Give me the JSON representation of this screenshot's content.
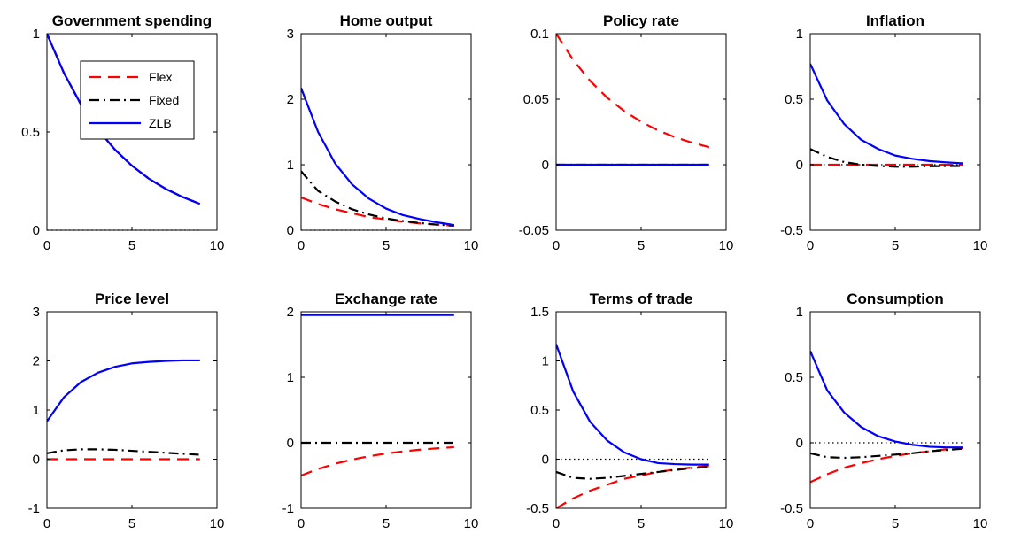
{
  "figure": {
    "legend": {
      "entries": [
        "Flex",
        "Fixed",
        "ZLB"
      ],
      "placement": "upper-center of first panel"
    },
    "series_colors": {
      "Flex": "#ff0000",
      "Fixed": "#000000",
      "ZLB": "#0000ff",
      "zero_line": "#000000"
    }
  },
  "chart_data": [
    {
      "type": "line",
      "title": "Government spending",
      "xlim": [
        0,
        10
      ],
      "ylim": [
        0,
        1
      ],
      "xticks": [
        "0",
        "5",
        "10"
      ],
      "yticks": [
        "0",
        "0.5",
        "1"
      ],
      "ytick_values": [
        0,
        0.5,
        1
      ],
      "zero_line": true,
      "x": [
        0,
        1,
        2,
        3,
        4,
        5,
        6,
        7,
        8,
        9
      ],
      "series": [
        {
          "name": "Flex",
          "values": [
            1.0,
            0.8,
            0.64,
            0.512,
            0.41,
            0.328,
            0.262,
            0.21,
            0.168,
            0.134
          ]
        },
        {
          "name": "Fixed",
          "values": [
            1.0,
            0.8,
            0.64,
            0.512,
            0.41,
            0.328,
            0.262,
            0.21,
            0.168,
            0.134
          ]
        },
        {
          "name": "ZLB",
          "values": [
            1.0,
            0.8,
            0.64,
            0.512,
            0.41,
            0.328,
            0.262,
            0.21,
            0.168,
            0.134
          ]
        }
      ]
    },
    {
      "type": "line",
      "title": "Home output",
      "xlim": [
        0,
        10
      ],
      "ylim": [
        0,
        3
      ],
      "xticks": [
        "0",
        "5",
        "10"
      ],
      "yticks": [
        "0",
        "1",
        "2",
        "3"
      ],
      "ytick_values": [
        0,
        1,
        2,
        3
      ],
      "zero_line": true,
      "x": [
        0,
        1,
        2,
        3,
        4,
        5,
        6,
        7,
        8,
        9
      ],
      "series": [
        {
          "name": "Flex",
          "values": [
            0.5,
            0.4,
            0.32,
            0.26,
            0.2,
            0.165,
            0.13,
            0.105,
            0.085,
            0.07
          ]
        },
        {
          "name": "Fixed",
          "values": [
            0.9,
            0.6,
            0.44,
            0.32,
            0.24,
            0.18,
            0.14,
            0.11,
            0.085,
            0.07
          ]
        },
        {
          "name": "ZLB",
          "values": [
            2.17,
            1.5,
            1.02,
            0.7,
            0.48,
            0.33,
            0.23,
            0.17,
            0.12,
            0.08
          ]
        }
      ]
    },
    {
      "type": "line",
      "title": "Policy rate",
      "xlim": [
        0,
        10
      ],
      "ylim": [
        -0.05,
        0.1
      ],
      "xticks": [
        "0",
        "5",
        "10"
      ],
      "yticks": [
        "-0.05",
        "0",
        "0.05",
        "0.1"
      ],
      "ytick_values": [
        -0.05,
        0,
        0.05,
        0.1
      ],
      "zero_line": true,
      "x": [
        0,
        1,
        2,
        3,
        4,
        5,
        6,
        7,
        8,
        9
      ],
      "series": [
        {
          "name": "Flex",
          "values": [
            0.1,
            0.08,
            0.064,
            0.0512,
            0.041,
            0.0328,
            0.0262,
            0.021,
            0.0168,
            0.0134
          ]
        },
        {
          "name": "Fixed",
          "values": [
            0,
            0,
            0,
            0,
            0,
            0,
            0,
            0,
            0,
            0
          ]
        },
        {
          "name": "ZLB",
          "values": [
            0,
            0,
            0,
            0,
            0,
            0,
            0,
            0,
            0,
            0
          ]
        }
      ]
    },
    {
      "type": "line",
      "title": "Inflation",
      "xlim": [
        0,
        10
      ],
      "ylim": [
        -0.5,
        1
      ],
      "xticks": [
        "0",
        "5",
        "10"
      ],
      "yticks": [
        "-0.5",
        "0",
        "0.5",
        "1"
      ],
      "ytick_values": [
        -0.5,
        0,
        0.5,
        1
      ],
      "zero_line": true,
      "x": [
        0,
        1,
        2,
        3,
        4,
        5,
        6,
        7,
        8,
        9
      ],
      "series": [
        {
          "name": "Flex",
          "values": [
            0,
            0,
            0,
            0,
            0,
            0,
            0,
            0,
            0,
            0
          ]
        },
        {
          "name": "Fixed",
          "values": [
            0.12,
            0.06,
            0.02,
            0.0,
            -0.01,
            -0.015,
            -0.015,
            -0.012,
            -0.01,
            -0.01
          ]
        },
        {
          "name": "ZLB",
          "values": [
            0.77,
            0.49,
            0.31,
            0.19,
            0.12,
            0.07,
            0.045,
            0.028,
            0.018,
            0.01
          ]
        }
      ]
    },
    {
      "type": "line",
      "title": "Price level",
      "xlim": [
        0,
        10
      ],
      "ylim": [
        -1,
        3
      ],
      "xticks": [
        "0",
        "5",
        "10"
      ],
      "yticks": [
        "-1",
        "0",
        "1",
        "2",
        "3"
      ],
      "ytick_values": [
        -1,
        0,
        1,
        2,
        3
      ],
      "zero_line": false,
      "x": [
        0,
        1,
        2,
        3,
        4,
        5,
        6,
        7,
        8,
        9
      ],
      "series": [
        {
          "name": "Flex",
          "values": [
            0,
            0,
            0,
            0,
            0,
            0,
            0,
            0,
            0,
            0
          ]
        },
        {
          "name": "Fixed",
          "values": [
            0.12,
            0.18,
            0.2,
            0.2,
            0.19,
            0.17,
            0.15,
            0.13,
            0.11,
            0.09
          ]
        },
        {
          "name": "ZLB",
          "values": [
            0.77,
            1.26,
            1.57,
            1.76,
            1.88,
            1.95,
            1.98,
            2.0,
            2.01,
            2.01
          ]
        }
      ]
    },
    {
      "type": "line",
      "title": "Exchange rate",
      "xlim": [
        0,
        10
      ],
      "ylim": [
        -1,
        2
      ],
      "xticks": [
        "0",
        "5",
        "10"
      ],
      "yticks": [
        "-1",
        "0",
        "1",
        "2"
      ],
      "ytick_values": [
        -1,
        0,
        1,
        2
      ],
      "zero_line": false,
      "x": [
        0,
        1,
        2,
        3,
        4,
        5,
        6,
        7,
        8,
        9
      ],
      "series": [
        {
          "name": "Flex",
          "values": [
            -0.5,
            -0.4,
            -0.32,
            -0.256,
            -0.205,
            -0.164,
            -0.131,
            -0.105,
            -0.084,
            -0.067
          ]
        },
        {
          "name": "Fixed",
          "values": [
            0,
            0,
            0,
            0,
            0,
            0,
            0,
            0,
            0,
            0
          ]
        },
        {
          "name": "ZLB",
          "values": [
            1.95,
            1.95,
            1.95,
            1.95,
            1.95,
            1.95,
            1.95,
            1.95,
            1.95,
            1.95
          ]
        }
      ]
    },
    {
      "type": "line",
      "title": "Terms of trade",
      "xlim": [
        0,
        10
      ],
      "ylim": [
        -0.5,
        1.5
      ],
      "xticks": [
        "0",
        "5",
        "10"
      ],
      "yticks": [
        "-0.5",
        "0",
        "0.5",
        "1",
        "1.5"
      ],
      "ytick_values": [
        -0.5,
        0,
        0.5,
        1,
        1.5
      ],
      "zero_line": true,
      "x": [
        0,
        1,
        2,
        3,
        4,
        5,
        6,
        7,
        8,
        9
      ],
      "series": [
        {
          "name": "Flex",
          "values": [
            -0.5,
            -0.4,
            -0.32,
            -0.26,
            -0.2,
            -0.165,
            -0.13,
            -0.105,
            -0.085,
            -0.07
          ]
        },
        {
          "name": "Fixed",
          "values": [
            -0.13,
            -0.19,
            -0.2,
            -0.19,
            -0.17,
            -0.15,
            -0.13,
            -0.11,
            -0.09,
            -0.08
          ]
        },
        {
          "name": "ZLB",
          "values": [
            1.17,
            0.69,
            0.38,
            0.19,
            0.07,
            0.0,
            -0.04,
            -0.05,
            -0.055,
            -0.055
          ]
        }
      ]
    },
    {
      "type": "line",
      "title": "Consumption",
      "xlim": [
        0,
        10
      ],
      "ylim": [
        -0.5,
        1
      ],
      "xticks": [
        "0",
        "5",
        "10"
      ],
      "yticks": [
        "-0.5",
        "0",
        "0.5",
        "1"
      ],
      "ytick_values": [
        -0.5,
        0,
        0.5,
        1
      ],
      "zero_line": true,
      "x": [
        0,
        1,
        2,
        3,
        4,
        5,
        6,
        7,
        8,
        9
      ],
      "series": [
        {
          "name": "Flex",
          "values": [
            -0.3,
            -0.24,
            -0.19,
            -0.155,
            -0.125,
            -0.1,
            -0.08,
            -0.065,
            -0.05,
            -0.04
          ]
        },
        {
          "name": "Fixed",
          "values": [
            -0.08,
            -0.11,
            -0.115,
            -0.11,
            -0.1,
            -0.09,
            -0.08,
            -0.065,
            -0.055,
            -0.045
          ]
        },
        {
          "name": "ZLB",
          "values": [
            0.7,
            0.4,
            0.23,
            0.12,
            0.05,
            0.01,
            -0.015,
            -0.03,
            -0.035,
            -0.035
          ]
        }
      ]
    }
  ]
}
